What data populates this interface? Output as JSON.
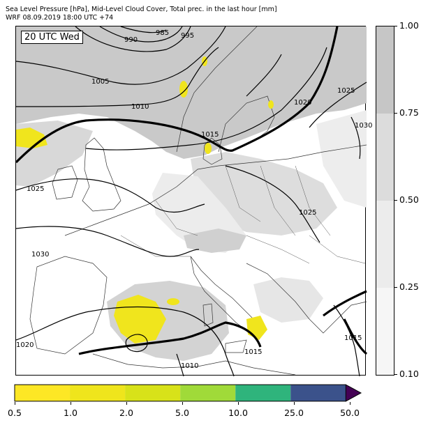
{
  "header": {
    "title_line1": "Sea Level Pressure [hPa], Mid-Level Cloud Cover, Total prec. in the last hour [mm]",
    "title_line2": "WRF 08.09.2019 18:00 UTC +74"
  },
  "map": {
    "time_label": "20 UTC Wed",
    "contour_labels": [
      "985",
      "990",
      "995",
      "1005",
      "1010",
      "1015",
      "1020",
      "1025",
      "1025",
      "1025",
      "1030",
      "1030",
      "1020",
      "1015",
      "1015",
      "1010"
    ]
  },
  "cloud_colorbar": {
    "ticks": [
      "1.00",
      "0.75",
      "0.50",
      "0.25",
      "0.10"
    ],
    "colors": [
      "#c6c6c6",
      "#dcdcdc",
      "#ececec",
      "#f6f6f6"
    ]
  },
  "precip_colorbar": {
    "ticks": [
      "0.5",
      "1.0",
      "2.0",
      "5.0",
      "10.0",
      "25.0",
      "50.0"
    ],
    "colors": [
      "#fde725",
      "#efe51c",
      "#d8e219",
      "#a0da39",
      "#2fb47c",
      "#3b528b",
      "#440154"
    ]
  }
}
